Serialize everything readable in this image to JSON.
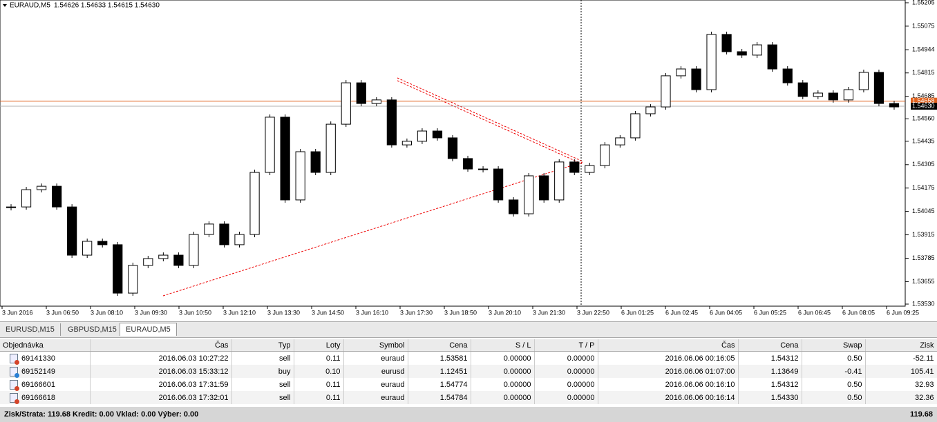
{
  "chart_data": {
    "type": "candlestick",
    "title": "EURAUD,M5",
    "quote": "1.54626 1.54633 1.54615 1.54630",
    "values": [
      1.5407,
      1.54166,
      1.54185,
      1.5407,
      1.53802,
      1.53879,
      1.5386,
      1.53591,
      1.53745,
      1.53783,
      1.53802,
      1.53745,
      1.53917,
      1.53975,
      1.5386,
      1.53917,
      1.54262,
      1.54569,
      1.54109,
      1.54377,
      1.54262,
      1.5453,
      1.5476,
      1.54645,
      1.54665,
      1.54415,
      1.54435,
      1.54492,
      1.54454,
      1.54339,
      1.54281,
      1.54281,
      1.54109,
      1.54032,
      1.54243,
      1.54109,
      1.5432,
      1.54262,
      1.543,
      1.54415,
      1.54454,
      1.54588,
      1.54626,
      1.54799,
      1.54837,
      1.54722,
      1.55029,
      1.54933,
      1.54914,
      1.54971,
      1.54837,
      1.5476,
      1.54684,
      1.54703,
      1.54665,
      1.54722,
      1.54818,
      1.54645,
      1.54626
    ],
    "ylim": [
      1.5353,
      1.55205
    ],
    "yticks": [
      1.55205,
      1.55075,
      1.54944,
      1.54815,
      1.54685,
      {
        "value": 1.5456,
        "label": "1.54560"
      },
      1.54435,
      1.54305,
      1.54175,
      1.54045,
      1.53915,
      1.53785,
      1.53655,
      {
        "value": 1.5353,
        "label": "1.53530"
      }
    ],
    "xtick_labels": [
      "3 Jun 2016",
      "3 Jun 06:50",
      "3 Jun 08:10",
      "3 Jun 09:30",
      "3 Jun 10:50",
      "3 Jun 12:10",
      "3 Jun 13:30",
      "3 Jun 14:50",
      "3 Jun 16:10",
      "3 Jun 17:30",
      "3 Jun 18:50",
      "3 Jun 20:10",
      "3 Jun 21:30",
      "3 Jun 22:50",
      "6 Jun 01:25",
      "6 Jun 02:45",
      "6 Jun 04:05",
      "6 Jun 05:25",
      "6 Jun 06:45",
      "6 Jun 08:05",
      "6 Jun 09:25"
    ],
    "price_lines": [
      {
        "value": 1.54658,
        "color": "#e0601c"
      },
      {
        "value": 1.5463,
        "label": "1.54630",
        "color": "#b0b0b0"
      }
    ]
  },
  "tabs": [
    "EURUSD,M15",
    "GBPUSD,M15",
    "EURAUD,M5"
  ],
  "table": {
    "headers": [
      "Objednávka",
      "Čas",
      "Typ",
      "Loty",
      "Symbol",
      "Cena",
      "S / L",
      "T / P",
      "Čas",
      "Cena",
      "Swap",
      "Zisk"
    ],
    "rows": [
      [
        "69141330",
        "2016.06.03 10:27:22",
        "sell",
        "0.11",
        "euraud",
        "1.53581",
        "0.00000",
        "0.00000",
        "2016.06.06 00:16:05",
        "1.54312",
        "0.50",
        "-52.11"
      ],
      [
        "69152149",
        "2016.06.03 15:33:12",
        "buy",
        "0.10",
        "eurusd",
        "1.12451",
        "0.00000",
        "0.00000",
        "2016.06.06 01:07:00",
        "1.13649",
        "-0.41",
        "105.41"
      ],
      [
        "69166601",
        "2016.06.03 17:31:59",
        "sell",
        "0.11",
        "euraud",
        "1.54774",
        "0.00000",
        "0.00000",
        "2016.06.06 00:16:10",
        "1.54312",
        "0.50",
        "32.93"
      ],
      [
        "69166618",
        "2016.06.03 17:32:01",
        "sell",
        "0.11",
        "euraud",
        "1.54784",
        "0.00000",
        "0.00000",
        "2016.06.06 00:16:14",
        "1.54330",
        "0.50",
        "32.36"
      ]
    ],
    "footer": "Zisk/Strata: 119.68  Kredit: 0.00  Vklad: 0.00  Výber: 0.00",
    "total": "119.68"
  }
}
